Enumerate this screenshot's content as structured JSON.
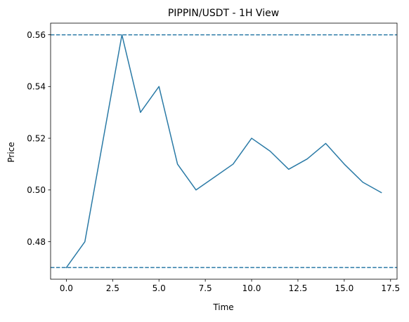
{
  "chart_data": {
    "type": "line",
    "title": "PIPPIN/USDT - 1H View",
    "xlabel": "Time",
    "ylabel": "Price",
    "xlim": [
      -0.85,
      17.85
    ],
    "ylim": [
      0.4655,
      0.5645
    ],
    "xticks": [
      0,
      2.5,
      5,
      7.5,
      10,
      12.5,
      15,
      17.5
    ],
    "xtick_labels": [
      "0.0",
      "2.5",
      "5.0",
      "7.5",
      "10.0",
      "12.5",
      "15.0",
      "17.5"
    ],
    "yticks": [
      0.48,
      0.5,
      0.52,
      0.54,
      0.56
    ],
    "ytick_labels": [
      "0.48",
      "0.50",
      "0.52",
      "0.54",
      "0.56"
    ],
    "grid": false,
    "series": [
      {
        "color": "#2a7aa6",
        "x": [
          0,
          1,
          2,
          3,
          4,
          5,
          6,
          7,
          8,
          9,
          10,
          11,
          12,
          13,
          14,
          15,
          16,
          17
        ],
        "y": [
          0.47,
          0.48,
          0.52,
          0.56,
          0.53,
          0.54,
          0.51,
          0.5,
          0.505,
          0.51,
          0.52,
          0.515,
          0.508,
          0.512,
          0.518,
          0.51,
          0.503,
          0.499
        ]
      }
    ],
    "hlines": [
      {
        "y": 0.56,
        "style": "dashed",
        "color": "#2a7aa6"
      },
      {
        "y": 0.47,
        "style": "dashed",
        "color": "#2a7aa6"
      }
    ]
  }
}
